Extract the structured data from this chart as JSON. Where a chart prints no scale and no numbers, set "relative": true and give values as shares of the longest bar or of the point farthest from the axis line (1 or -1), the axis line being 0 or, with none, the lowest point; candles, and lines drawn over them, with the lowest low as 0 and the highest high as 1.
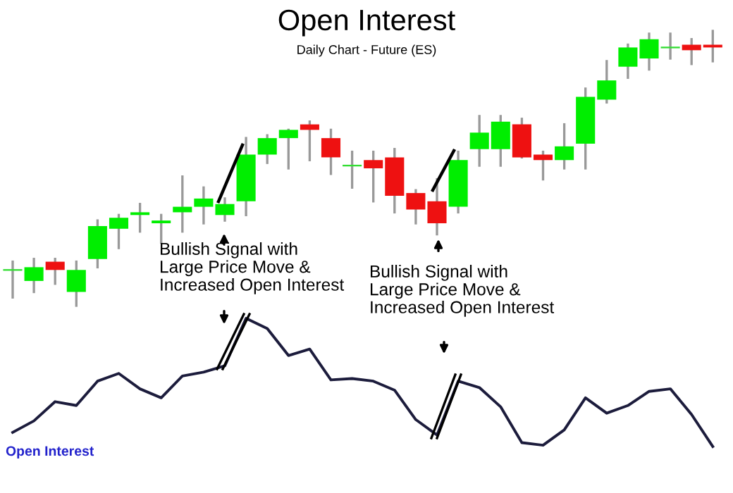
{
  "chart_data": [
    {
      "type": "candlestick",
      "title": "Open Interest",
      "subtitle": "Daily Chart - Future (ES)",
      "relative": true,
      "annotations": [
        "Bullish Signal with\nLarge Price Move &\nIncreased Open Interest",
        "Bullish Signal with\nLarge Price Move &\nIncreased Open Interest"
      ],
      "categories": [
        null,
        null,
        null,
        null,
        null,
        null,
        null,
        null,
        null,
        null,
        null,
        null,
        null,
        null,
        null,
        null,
        null,
        null,
        null,
        null,
        null,
        null,
        null,
        null,
        null,
        null,
        null,
        null,
        null,
        null,
        null,
        null,
        null,
        null
      ],
      "colors": [
        "#33dd33",
        "#00ee00",
        "#ee1111",
        "#00ee00",
        "#00ee00",
        "#00ee00",
        "#00ee00",
        "#00ee00",
        "#00ee00",
        "#00ee00",
        "#00ee00",
        "#00ee00",
        "#00ee00",
        "#00ee00",
        "#ee1111",
        "#ee1111",
        "#33dd33",
        "#ee1111",
        "#ee1111",
        "#ee1111",
        "#ee1111",
        "#00ee00",
        "#00ee00",
        "#00ee00",
        "#ee1111",
        "#ee1111",
        "#00ee00",
        "#00ee00",
        "#00ee00",
        "#00ee00",
        "#00ee00",
        "#33dd33",
        "#ee1111",
        "#ee1111"
      ],
      "ohlc": [
        [
          0.13,
          0.16,
          0.03,
          0.13
        ],
        [
          0.09,
          0.17,
          0.05,
          0.14
        ],
        [
          0.16,
          0.17,
          0.08,
          0.13
        ],
        [
          0.05,
          0.16,
          0,
          0.13
        ],
        [
          0.17,
          0.31,
          0.14,
          0.29
        ],
        [
          0.28,
          0.33,
          0.21,
          0.32
        ],
        [
          0.33,
          0.37,
          0.27,
          0.34
        ],
        [
          0.3,
          0.33,
          0.23,
          0.31
        ],
        [
          0.34,
          0.47,
          0.27,
          0.36
        ],
        [
          0.36,
          0.43,
          0.3,
          0.39
        ],
        [
          0.33,
          0.39,
          0.31,
          0.37
        ],
        [
          0.38,
          0.61,
          0.33,
          0.55
        ],
        [
          0.55,
          0.62,
          0.52,
          0.61
        ],
        [
          0.61,
          0.64,
          0.5,
          0.64
        ],
        [
          0.66,
          0.67,
          0.53,
          0.64
        ],
        [
          0.61,
          0.64,
          0.48,
          0.54
        ],
        [
          0.51,
          0.56,
          0.43,
          0.51
        ],
        [
          0.53,
          0.56,
          0.38,
          0.5
        ],
        [
          0.54,
          0.57,
          0.34,
          0.4
        ],
        [
          0.41,
          0.42,
          0.3,
          0.35
        ],
        [
          0.38,
          0.46,
          0.26,
          0.3
        ],
        [
          0.36,
          0.56,
          0.34,
          0.53
        ],
        [
          0.57,
          0.69,
          0.51,
          0.63
        ],
        [
          0.57,
          0.69,
          0.51,
          0.67
        ],
        [
          0.66,
          0.68,
          0.54,
          0.54
        ],
        [
          0.55,
          0.56,
          0.46,
          0.53
        ],
        [
          0.53,
          0.66,
          0.5,
          0.58
        ],
        [
          0.59,
          0.79,
          0.5,
          0.76
        ],
        [
          0.75,
          0.89,
          0.74,
          0.82
        ],
        [
          0.87,
          0.95,
          0.83,
          0.94
        ],
        [
          0.9,
          0.99,
          0.86,
          0.97
        ],
        [
          0.94,
          0.99,
          0.9,
          0.94
        ],
        [
          0.95,
          0.97,
          0.88,
          0.93
        ],
        [
          0.95,
          1,
          0.89,
          0.94
        ]
      ]
    },
    {
      "type": "line",
      "title": "Open Interest",
      "relative": true,
      "categories": [
        null,
        null,
        null,
        null,
        null,
        null,
        null,
        null,
        null,
        null,
        null,
        null,
        null,
        null,
        null,
        null,
        null,
        null,
        null,
        null,
        null,
        null,
        null,
        null,
        null,
        null,
        null,
        null,
        null,
        null,
        null,
        null,
        null,
        null
      ],
      "series": [
        {
          "color": "#1c1c3c",
          "values": [
            0.11,
            0.2,
            0.35,
            0.32,
            0.51,
            0.57,
            0.45,
            0.38,
            0.55,
            0.58,
            0.63,
            1,
            0.92,
            0.71,
            0.76,
            0.52,
            0.53,
            0.51,
            0.44,
            0.21,
            0.09,
            0.51,
            0.46,
            0.31,
            0.03,
            0.01,
            0.13,
            0.38,
            0.26,
            0.32,
            0.43,
            0.45,
            0.25,
            0
          ]
        }
      ]
    }
  ]
}
